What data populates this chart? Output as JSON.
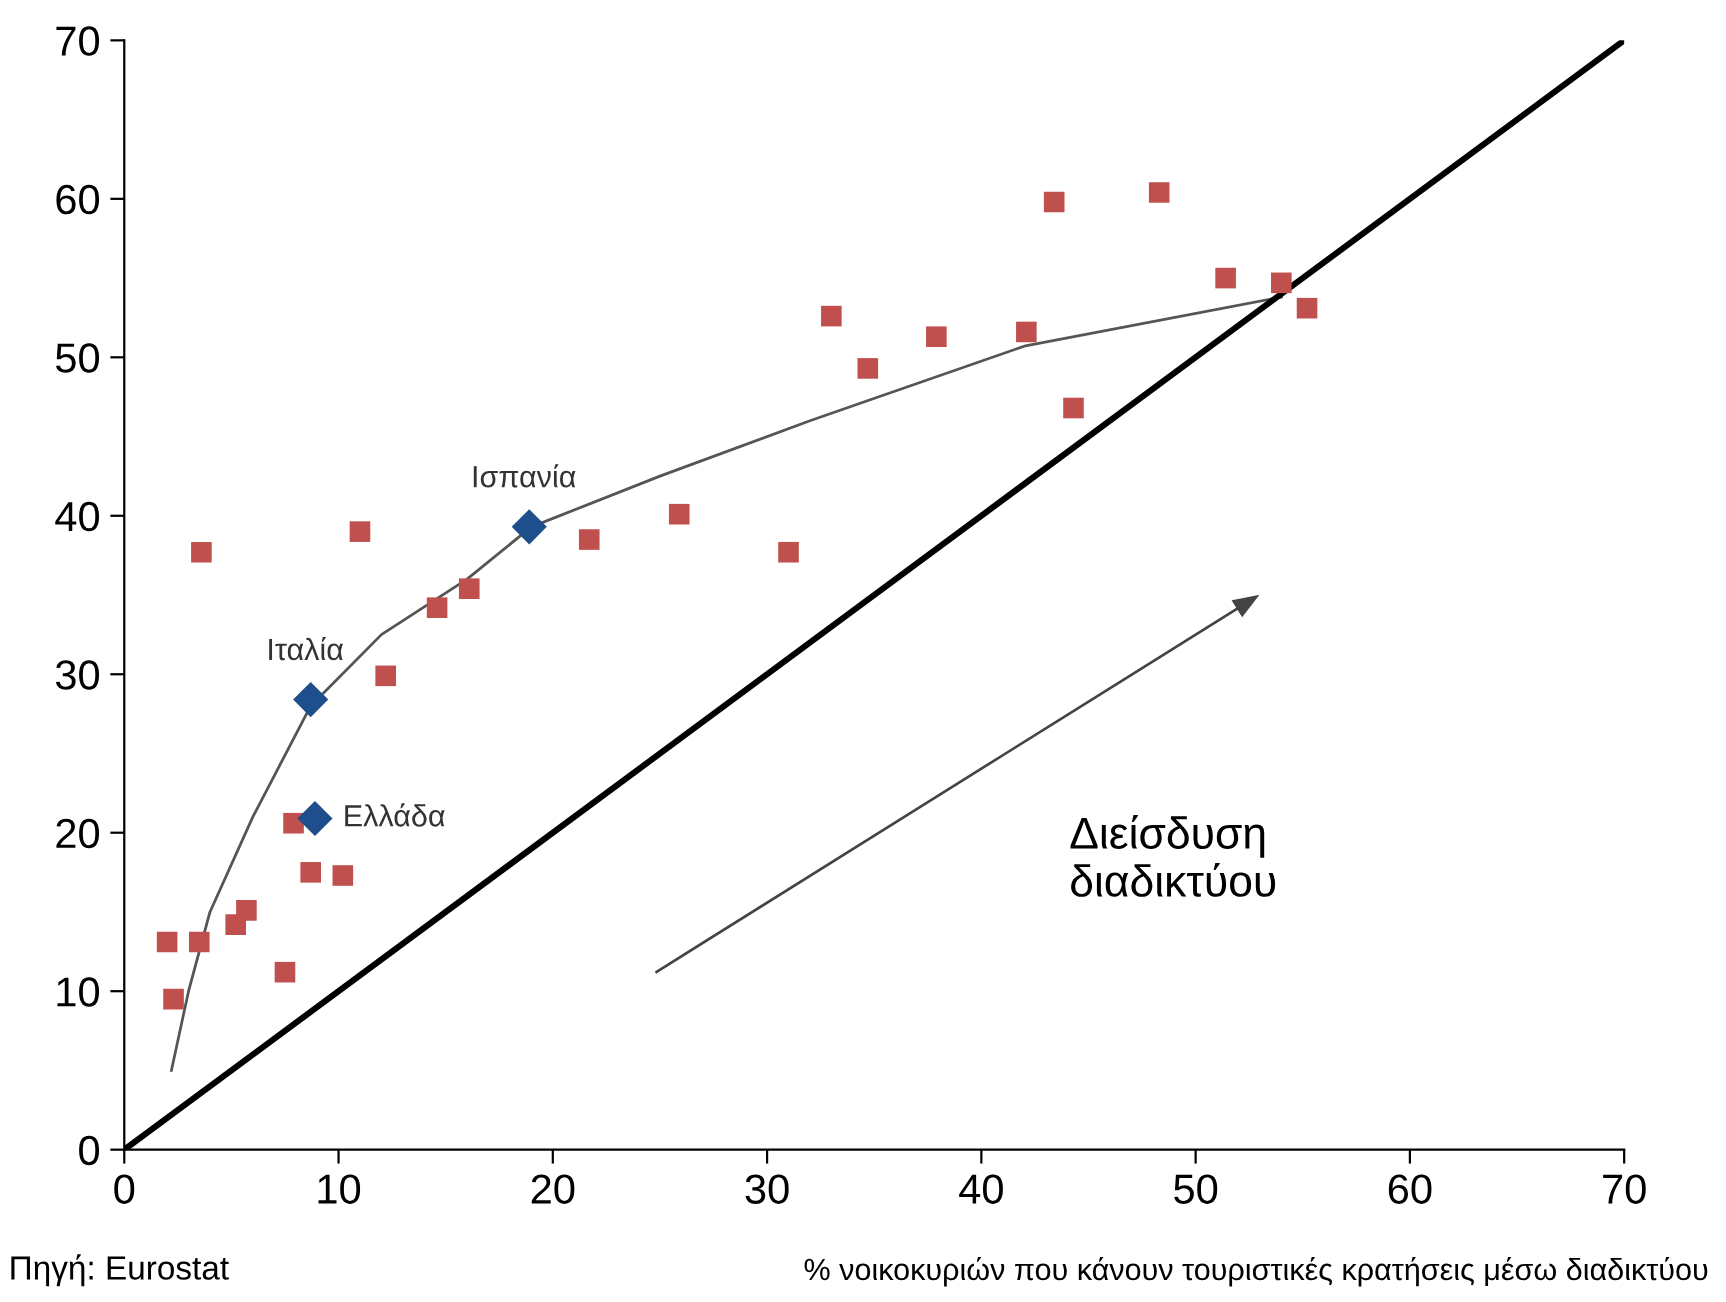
{
  "chart_data": {
    "type": "scatter",
    "xlabel": "% νοικοκυριών που κάνουν τουριστικές κρατήσεις μέσω διαδικτύου",
    "xlim": [
      0,
      70
    ],
    "ylim": [
      0,
      70
    ],
    "xticks": [
      0,
      10,
      20,
      30,
      40,
      50,
      60,
      70
    ],
    "yticks": [
      0,
      10,
      20,
      30,
      40,
      50,
      60,
      70
    ],
    "grid": false,
    "legend": false,
    "series": [
      {
        "marker": "square",
        "color": "#c0504d",
        "x": [
          2.0,
          2.3,
          3.5,
          3.6,
          5.2,
          5.7,
          7.5,
          7.9,
          8.7,
          10.2,
          11.0,
          12.2,
          14.6,
          16.1,
          21.7,
          25.9,
          31.0,
          33.0,
          34.7,
          37.9,
          42.1,
          43.4,
          44.3,
          48.3,
          51.4,
          54.0,
          55.2
        ],
        "values": [
          13.1,
          9.5,
          13.1,
          37.7,
          14.2,
          15.1,
          11.2,
          20.6,
          17.5,
          17.3,
          39.0,
          29.9,
          34.2,
          35.4,
          38.5,
          40.1,
          37.7,
          52.6,
          49.3,
          51.3,
          51.6,
          59.8,
          46.8,
          60.4,
          55.0,
          54.7,
          53.1
        ]
      },
      {
        "marker": "diamond",
        "color": "#1f4e8c",
        "x": [
          8.7,
          8.9,
          18.9
        ],
        "values": [
          28.4,
          20.9,
          39.3
        ]
      },
      {
        "type": "line",
        "marker": "none",
        "line_style": "solid",
        "color": "#555555",
        "x": [
          2.2,
          3,
          4,
          6,
          8.7,
          12,
          16,
          19,
          25,
          32,
          42,
          54
        ],
        "values": [
          5,
          10,
          15,
          21,
          28,
          32.5,
          36,
          39.3,
          42.5,
          46,
          50.7,
          53.8
        ]
      },
      {
        "type": "line",
        "marker": "none",
        "line_style": "solid",
        "color": "#000000",
        "x": [
          0,
          70
        ],
        "values": [
          0,
          70
        ]
      }
    ],
    "annotations": [
      {
        "text": "Ιταλία",
        "x": 8.7,
        "y": 28.4
      },
      {
        "text": "Ελλάδα",
        "x": 8.9,
        "y": 20.9
      },
      {
        "text": "Ισπανία",
        "x": 18.9,
        "y": 39.3
      },
      "Διείσδυση\nδιαδικτύου",
      "Πηγή: Eurostat"
    ]
  }
}
